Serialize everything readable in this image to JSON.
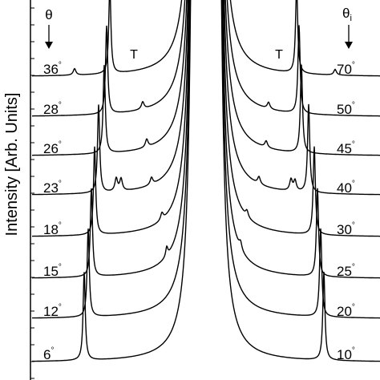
{
  "chart_data": {
    "type": "line",
    "ylabel": "Intensity [Arb. Units]",
    "left_header": "θ",
    "right_header": "θ",
    "right_header_sub": "i",
    "degree_symbol": "°",
    "peak_label": "T",
    "series": [
      {
        "left_label": "6",
        "right_label": "10"
      },
      {
        "left_label": "12",
        "right_label": "20"
      },
      {
        "left_label": "15",
        "right_label": "25"
      },
      {
        "left_label": "18",
        "right_label": "30"
      },
      {
        "left_label": "23",
        "right_label": "40"
      },
      {
        "left_label": "26",
        "right_label": "45"
      },
      {
        "left_label": "28",
        "right_label": "50"
      },
      {
        "left_label": "36",
        "right_label": "70"
      }
    ],
    "line_color": "#000000"
  }
}
